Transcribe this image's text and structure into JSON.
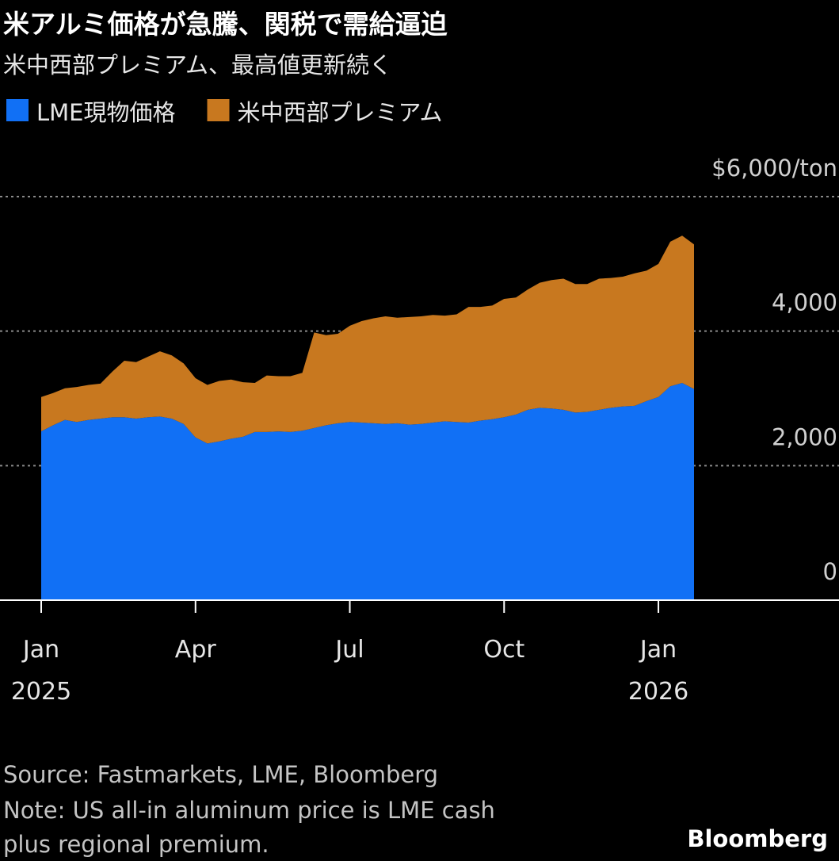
{
  "chart_data": {
    "type": "area",
    "stacked": true,
    "title": "米アルミ価格が急騰、関税で需給逼迫",
    "subtitle": "米中西部プレミアム、最高値更新続く",
    "categories": [
      "Jan",
      null,
      null,
      null,
      null,
      null,
      null,
      null,
      null,
      null,
      null,
      null,
      null,
      "Apr",
      null,
      null,
      null,
      null,
      null,
      null,
      null,
      null,
      null,
      null,
      null,
      null,
      "Jul",
      null,
      null,
      null,
      null,
      null,
      null,
      null,
      null,
      null,
      null,
      null,
      null,
      "Oct",
      null,
      null,
      null,
      null,
      null,
      null,
      null,
      null,
      null,
      null,
      null,
      null,
      "Jan",
      null,
      null,
      null
    ],
    "category_years": [
      "2025",
      null,
      null,
      null,
      null,
      null,
      null,
      null,
      null,
      null,
      null,
      null,
      null,
      null,
      null,
      null,
      null,
      null,
      null,
      null,
      null,
      null,
      null,
      null,
      null,
      null,
      null,
      null,
      null,
      null,
      null,
      null,
      null,
      null,
      null,
      null,
      null,
      null,
      null,
      null,
      null,
      null,
      null,
      null,
      null,
      null,
      null,
      null,
      null,
      null,
      null,
      null,
      "2026",
      null,
      null,
      null
    ],
    "series": [
      {
        "name": "LME現物価格",
        "color": "#1170f5",
        "values": [
          2510,
          2600,
          2680,
          2650,
          2680,
          2700,
          2720,
          2720,
          2700,
          2720,
          2730,
          2700,
          2620,
          2420,
          2330,
          2360,
          2400,
          2430,
          2500,
          2500,
          2510,
          2500,
          2520,
          2560,
          2600,
          2630,
          2650,
          2640,
          2630,
          2620,
          2630,
          2610,
          2620,
          2640,
          2660,
          2650,
          2640,
          2670,
          2690,
          2720,
          2760,
          2830,
          2860,
          2850,
          2830,
          2790,
          2800,
          2830,
          2860,
          2880,
          2890,
          2960,
          3020,
          3180,
          3230,
          3140
        ]
      },
      {
        "name": "米中西部プレミアム",
        "color": "#c8781f",
        "values": [
          510,
          480,
          470,
          520,
          520,
          520,
          680,
          840,
          840,
          900,
          970,
          940,
          900,
          880,
          870,
          900,
          880,
          810,
          730,
          840,
          820,
          830,
          860,
          1420,
          1340,
          1330,
          1430,
          1510,
          1560,
          1600,
          1570,
          1600,
          1600,
          1600,
          1570,
          1600,
          1720,
          1690,
          1690,
          1760,
          1740,
          1790,
          1860,
          1910,
          1950,
          1910,
          1900,
          1950,
          1930,
          1930,
          1970,
          1940,
          1980,
          2150,
          2190,
          2150
        ]
      }
    ],
    "ylim": [
      0,
      6000
    ],
    "yticks": [
      0,
      {
        "value": 2000,
        "label": "2,000"
      },
      {
        "value": 4000,
        "label": "4,000"
      },
      {
        "value": 6000,
        "label": "$6,000/ton"
      }
    ],
    "grid": true,
    "source": "Source: Fastmarkets, LME, Bloomberg",
    "note": [
      "Note: US all-in aluminum price is LME cash",
      "plus regional premium."
    ],
    "brand": "Bloomberg"
  }
}
